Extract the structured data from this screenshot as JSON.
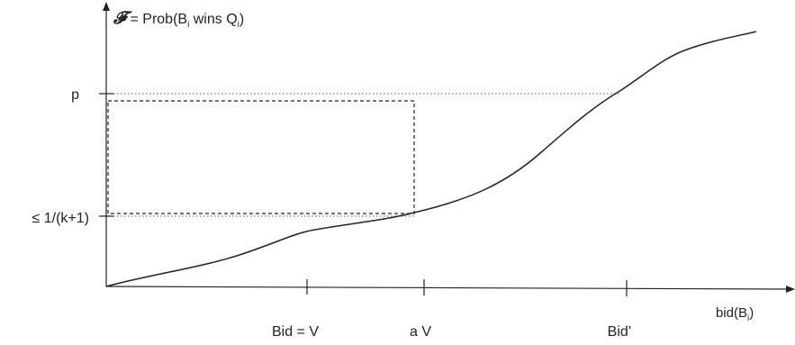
{
  "y_axis_label": {
    "symbol": "𝓕",
    "prefix": " = Prob(B",
    "sub1": "i",
    "middle": " wins Q",
    "sub2": "i",
    "suffix": ")"
  },
  "x_axis_label": {
    "prefix": "bid(B",
    "sub": "i",
    "suffix": ")"
  },
  "y_ticks": {
    "p": "p",
    "threshold": "≤ 1/(k+1)"
  },
  "x_ticks": {
    "bid_v": "Bid = V",
    "a_v": "a V",
    "bid_prime": "Bid’"
  },
  "colors": {
    "ink": "#222222",
    "guide": "#555555"
  }
}
